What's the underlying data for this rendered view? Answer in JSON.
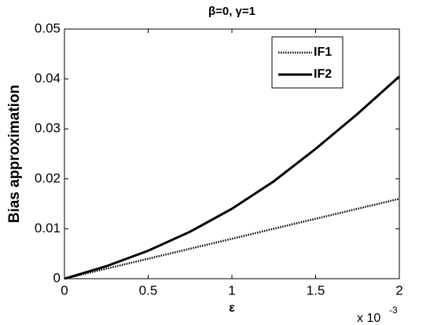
{
  "chart_data": {
    "type": "line",
    "title": "β=0, γ=1",
    "xlabel": "ε",
    "ylabel": "Bias approximation",
    "x_multiplier": {
      "base": "x 10",
      "exponent": "-3"
    },
    "x": [
      0,
      0.25,
      0.5,
      0.75,
      1,
      1.25,
      1.5,
      1.75,
      2
    ],
    "series": [
      {
        "name": "IF1",
        "color": "#000000",
        "line_style": "dotted",
        "values": [
          0,
          0.002,
          0.004,
          0.006,
          0.008,
          0.01,
          0.012,
          0.014,
          0.016
        ]
      },
      {
        "name": "IF2",
        "color": "#000000",
        "line_style": "solid",
        "values": [
          0,
          0.0025,
          0.0056,
          0.0094,
          0.014,
          0.0195,
          0.026,
          0.033,
          0.0405
        ]
      }
    ],
    "xlim": [
      0,
      2
    ],
    "xticks": [
      0,
      0.5,
      1,
      1.5,
      2
    ],
    "ylim": [
      0,
      0.05
    ],
    "yticks": [
      0,
      0.01,
      0.02,
      0.03,
      0.04,
      0.05
    ],
    "grid": false,
    "legend": "upper right"
  }
}
